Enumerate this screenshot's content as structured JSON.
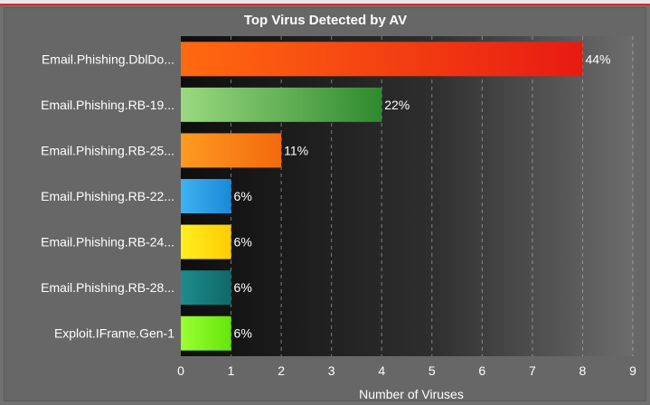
{
  "colors": {
    "background": "#676767",
    "plot_dark": "#111111",
    "plot_light": "#6e6e6e",
    "text": "#ffffff",
    "accent_top": "#d62a2a"
  },
  "chart_data": {
    "type": "bar",
    "orientation": "horizontal",
    "title": "Top Virus Detected by AV",
    "xlabel": "Number of Viruses",
    "ylabel": "",
    "xlim": [
      0,
      9
    ],
    "xticks": [
      "0",
      "1",
      "2",
      "3",
      "4",
      "5",
      "6",
      "7",
      "8",
      "9"
    ],
    "grid": true,
    "categories": [
      "Email.Phishing.DblDo...",
      "Email.Phishing.RB-19...",
      "Email.Phishing.RB-25...",
      "Email.Phishing.RB-22...",
      "Email.Phishing.RB-24...",
      "Email.Phishing.RB-28...",
      "Exploit.IFrame.Gen-1"
    ],
    "values": [
      8,
      4,
      2,
      1,
      1,
      1,
      1
    ],
    "labels": [
      "44%",
      "22%",
      "11%",
      "6%",
      "6%",
      "6%",
      "6%"
    ],
    "bar_colors": [
      [
        "#ff6a10",
        "#e81a12"
      ],
      [
        "#9ad97f",
        "#2f8a2f"
      ],
      [
        "#ff9a22",
        "#f26a0c"
      ],
      [
        "#3fb2f0",
        "#1a8ad8"
      ],
      [
        "#ffee20",
        "#ffcc00"
      ],
      [
        "#1c8c8c",
        "#116868"
      ],
      [
        "#99ff33",
        "#66e60a"
      ]
    ]
  }
}
